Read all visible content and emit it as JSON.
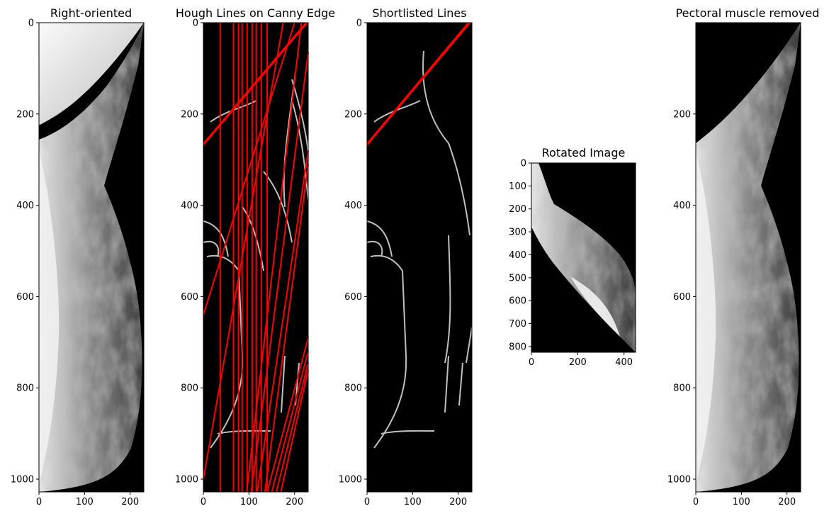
{
  "panels": [
    {
      "id": "right-oriented",
      "title": "Right-oriented",
      "xticks": [
        0,
        100,
        200
      ],
      "yticks": [
        0,
        200,
        400,
        600,
        800,
        1000
      ],
      "xlim": [
        0,
        230
      ],
      "ylim": [
        0,
        1028
      ],
      "kind": "mammogram"
    },
    {
      "id": "hough-lines",
      "title": "Hough Lines on Canny Edge",
      "xticks": [
        0,
        100,
        200
      ],
      "yticks": [
        0,
        200,
        400,
        600,
        800,
        1000
      ],
      "xlim": [
        0,
        230
      ],
      "ylim": [
        0,
        1028
      ],
      "kind": "edges-lines",
      "line_color": "#ff0000",
      "vertical_lines_x": [
        37,
        66,
        77,
        85,
        96,
        107,
        116,
        127,
        140
      ],
      "slanted_lines": [
        [
          [
            0,
            265
          ],
          [
            225,
            0
          ]
        ],
        [
          [
            0,
            268
          ],
          [
            228,
            0
          ]
        ],
        [
          [
            0,
            640
          ],
          [
            200,
            0
          ]
        ],
        [
          [
            0,
            1000
          ],
          [
            175,
            0
          ]
        ],
        [
          [
            95,
            1028
          ],
          [
            215,
            0
          ]
        ],
        [
          [
            105,
            1028
          ],
          [
            230,
            65
          ]
        ],
        [
          [
            118,
            1028
          ],
          [
            230,
            280
          ]
        ],
        [
          [
            135,
            1028
          ],
          [
            230,
            310
          ]
        ],
        [
          [
            140,
            1028
          ],
          [
            230,
            690
          ]
        ],
        [
          [
            150,
            1028
          ],
          [
            230,
            720
          ]
        ],
        [
          [
            160,
            1028
          ],
          [
            230,
            745
          ]
        ],
        [
          [
            170,
            1028
          ],
          [
            230,
            760
          ]
        ]
      ]
    },
    {
      "id": "shortlisted-lines",
      "title": "Shortlisted Lines",
      "xticks": [
        0,
        100,
        200
      ],
      "yticks": [
        0,
        200,
        400,
        600,
        800,
        1000
      ],
      "xlim": [
        0,
        230
      ],
      "ylim": [
        0,
        1028
      ],
      "kind": "edges-lines",
      "line_color": "#ff0000",
      "vertical_lines_x": [],
      "slanted_lines": [
        [
          [
            0,
            265
          ],
          [
            222,
            0
          ]
        ],
        [
          [
            0,
            268
          ],
          [
            226,
            0
          ]
        ]
      ]
    },
    {
      "id": "rotated-image",
      "title": "Rotated Image",
      "xticks": [
        0,
        200,
        400
      ],
      "yticks": [
        0,
        100,
        200,
        300,
        400,
        500,
        600,
        700,
        800
      ],
      "xlim": [
        0,
        450
      ],
      "ylim": [
        0,
        825
      ],
      "kind": "rotated"
    },
    {
      "id": "pectoral-removed",
      "title": "Pectoral muscle removed",
      "xticks": [
        0,
        100,
        200
      ],
      "yticks": [
        200,
        400,
        600,
        800,
        1000
      ],
      "xlim": [
        0,
        230
      ],
      "ylim": [
        0,
        1028
      ],
      "kind": "mammogram-removed"
    }
  ]
}
